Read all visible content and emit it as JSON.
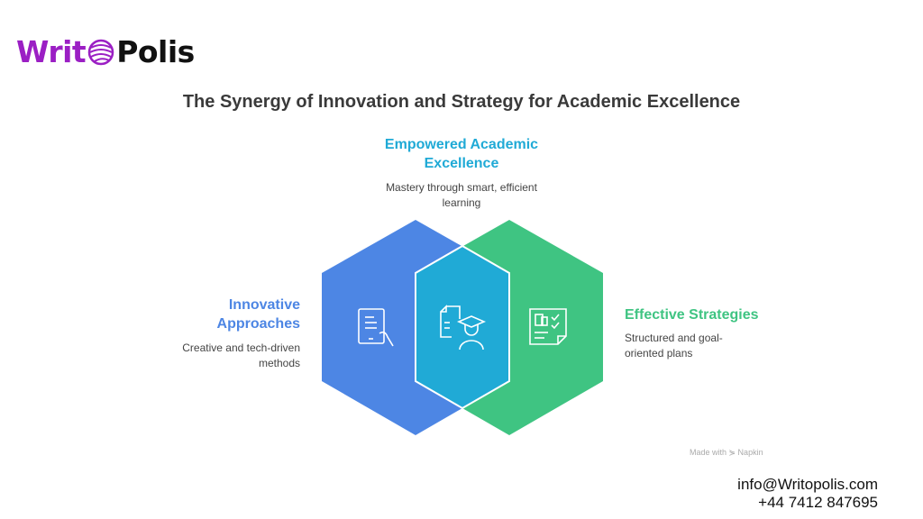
{
  "logo": {
    "part1": "Writ",
    "part2": "Polis"
  },
  "title": "The Synergy of Innovation and Strategy for Academic Excellence",
  "colors": {
    "left": "#4d86e4",
    "right": "#3fc482",
    "center": "#20aad6",
    "top_heading": "#20aad6",
    "left_heading": "#4d86e4",
    "right_heading": "#3fc482",
    "logo_purple": "#9b1fc4"
  },
  "top": {
    "heading": "Empowered Academic Excellence",
    "desc": "Mastery through smart, efficient learning",
    "icon": "document-graduate-icon"
  },
  "left": {
    "heading": "Innovative Approaches",
    "desc": "Creative and tech-driven methods",
    "icon": "tablet-hand-icon"
  },
  "right": {
    "heading": "Effective Strategies",
    "desc": "Structured and goal-oriented plans",
    "icon": "checklist-icon"
  },
  "watermark": "Made with ⋟ Napkin",
  "contact": {
    "email": "info@Writopolis.com",
    "phone": "+44 7412 847695"
  }
}
